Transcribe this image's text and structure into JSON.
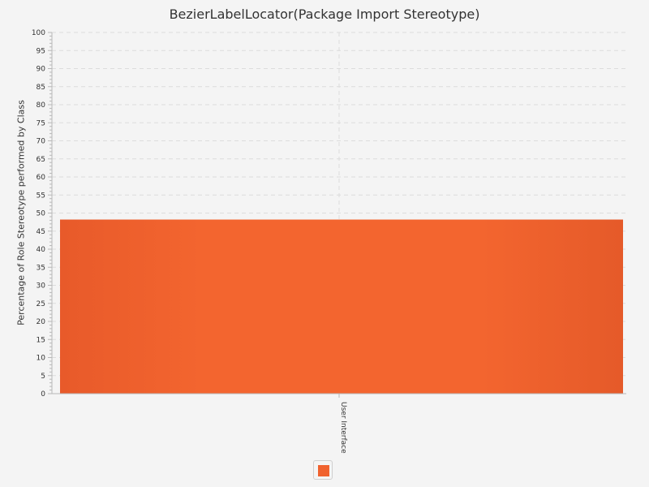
{
  "chart_data": {
    "type": "bar",
    "title": "BezierLabelLocator(Package Import Stereotype)",
    "xlabel": "",
    "ylabel": "Percentage of Role Stereotype performed by Class",
    "categories": [
      "User Interface"
    ],
    "series": [
      {
        "values": [
          48.2
        ],
        "color": "#f0622e"
      }
    ],
    "ylim": [
      0,
      100
    ],
    "ytick_step": 5,
    "grid": true,
    "legend": "bottom-center"
  }
}
